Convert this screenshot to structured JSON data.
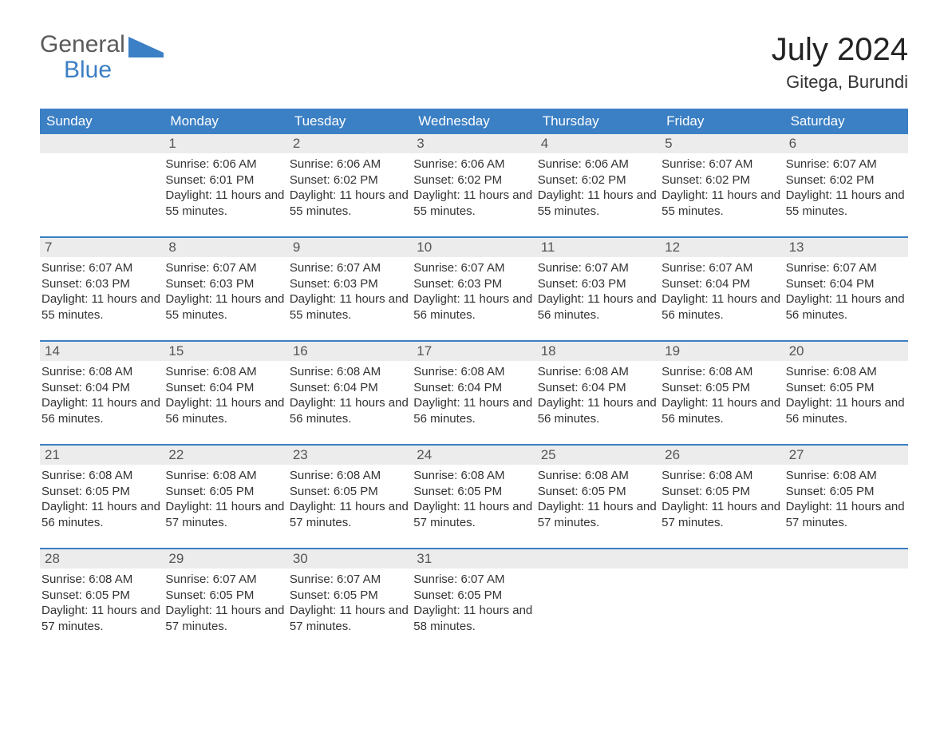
{
  "brand": {
    "line1": "General",
    "line2": "Blue"
  },
  "title": "July 2024",
  "location": "Gitega, Burundi",
  "colors": {
    "header_bg": "#3b7fc4",
    "daynum_bg": "#ececec",
    "page_bg": "#ffffff",
    "text": "#333333"
  },
  "day_names": [
    "Sunday",
    "Monday",
    "Tuesday",
    "Wednesday",
    "Thursday",
    "Friday",
    "Saturday"
  ],
  "cell_labels": {
    "sunrise": "Sunrise:",
    "sunset": "Sunset:",
    "daylight": "Daylight:"
  },
  "weeks": [
    [
      {
        "n": "",
        "sunrise": "",
        "sunset": "",
        "day_h": "",
        "day_m": ""
      },
      {
        "n": "1",
        "sunrise": "6:06 AM",
        "sunset": "6:01 PM",
        "day_h": "11",
        "day_m": "55"
      },
      {
        "n": "2",
        "sunrise": "6:06 AM",
        "sunset": "6:02 PM",
        "day_h": "11",
        "day_m": "55"
      },
      {
        "n": "3",
        "sunrise": "6:06 AM",
        "sunset": "6:02 PM",
        "day_h": "11",
        "day_m": "55"
      },
      {
        "n": "4",
        "sunrise": "6:06 AM",
        "sunset": "6:02 PM",
        "day_h": "11",
        "day_m": "55"
      },
      {
        "n": "5",
        "sunrise": "6:07 AM",
        "sunset": "6:02 PM",
        "day_h": "11",
        "day_m": "55"
      },
      {
        "n": "6",
        "sunrise": "6:07 AM",
        "sunset": "6:02 PM",
        "day_h": "11",
        "day_m": "55"
      }
    ],
    [
      {
        "n": "7",
        "sunrise": "6:07 AM",
        "sunset": "6:03 PM",
        "day_h": "11",
        "day_m": "55"
      },
      {
        "n": "8",
        "sunrise": "6:07 AM",
        "sunset": "6:03 PM",
        "day_h": "11",
        "day_m": "55"
      },
      {
        "n": "9",
        "sunrise": "6:07 AM",
        "sunset": "6:03 PM",
        "day_h": "11",
        "day_m": "55"
      },
      {
        "n": "10",
        "sunrise": "6:07 AM",
        "sunset": "6:03 PM",
        "day_h": "11",
        "day_m": "56"
      },
      {
        "n": "11",
        "sunrise": "6:07 AM",
        "sunset": "6:03 PM",
        "day_h": "11",
        "day_m": "56"
      },
      {
        "n": "12",
        "sunrise": "6:07 AM",
        "sunset": "6:04 PM",
        "day_h": "11",
        "day_m": "56"
      },
      {
        "n": "13",
        "sunrise": "6:07 AM",
        "sunset": "6:04 PM",
        "day_h": "11",
        "day_m": "56"
      }
    ],
    [
      {
        "n": "14",
        "sunrise": "6:08 AM",
        "sunset": "6:04 PM",
        "day_h": "11",
        "day_m": "56"
      },
      {
        "n": "15",
        "sunrise": "6:08 AM",
        "sunset": "6:04 PM",
        "day_h": "11",
        "day_m": "56"
      },
      {
        "n": "16",
        "sunrise": "6:08 AM",
        "sunset": "6:04 PM",
        "day_h": "11",
        "day_m": "56"
      },
      {
        "n": "17",
        "sunrise": "6:08 AM",
        "sunset": "6:04 PM",
        "day_h": "11",
        "day_m": "56"
      },
      {
        "n": "18",
        "sunrise": "6:08 AM",
        "sunset": "6:04 PM",
        "day_h": "11",
        "day_m": "56"
      },
      {
        "n": "19",
        "sunrise": "6:08 AM",
        "sunset": "6:05 PM",
        "day_h": "11",
        "day_m": "56"
      },
      {
        "n": "20",
        "sunrise": "6:08 AM",
        "sunset": "6:05 PM",
        "day_h": "11",
        "day_m": "56"
      }
    ],
    [
      {
        "n": "21",
        "sunrise": "6:08 AM",
        "sunset": "6:05 PM",
        "day_h": "11",
        "day_m": "56"
      },
      {
        "n": "22",
        "sunrise": "6:08 AM",
        "sunset": "6:05 PM",
        "day_h": "11",
        "day_m": "57"
      },
      {
        "n": "23",
        "sunrise": "6:08 AM",
        "sunset": "6:05 PM",
        "day_h": "11",
        "day_m": "57"
      },
      {
        "n": "24",
        "sunrise": "6:08 AM",
        "sunset": "6:05 PM",
        "day_h": "11",
        "day_m": "57"
      },
      {
        "n": "25",
        "sunrise": "6:08 AM",
        "sunset": "6:05 PM",
        "day_h": "11",
        "day_m": "57"
      },
      {
        "n": "26",
        "sunrise": "6:08 AM",
        "sunset": "6:05 PM",
        "day_h": "11",
        "day_m": "57"
      },
      {
        "n": "27",
        "sunrise": "6:08 AM",
        "sunset": "6:05 PM",
        "day_h": "11",
        "day_m": "57"
      }
    ],
    [
      {
        "n": "28",
        "sunrise": "6:08 AM",
        "sunset": "6:05 PM",
        "day_h": "11",
        "day_m": "57"
      },
      {
        "n": "29",
        "sunrise": "6:07 AM",
        "sunset": "6:05 PM",
        "day_h": "11",
        "day_m": "57"
      },
      {
        "n": "30",
        "sunrise": "6:07 AM",
        "sunset": "6:05 PM",
        "day_h": "11",
        "day_m": "57"
      },
      {
        "n": "31",
        "sunrise": "6:07 AM",
        "sunset": "6:05 PM",
        "day_h": "11",
        "day_m": "58"
      },
      {
        "n": "",
        "sunrise": "",
        "sunset": "",
        "day_h": "",
        "day_m": ""
      },
      {
        "n": "",
        "sunrise": "",
        "sunset": "",
        "day_h": "",
        "day_m": ""
      },
      {
        "n": "",
        "sunrise": "",
        "sunset": "",
        "day_h": "",
        "day_m": ""
      }
    ]
  ],
  "daylight_template": {
    "hours_word": "hours",
    "and_word": "and",
    "minutes_word": "minutes."
  }
}
